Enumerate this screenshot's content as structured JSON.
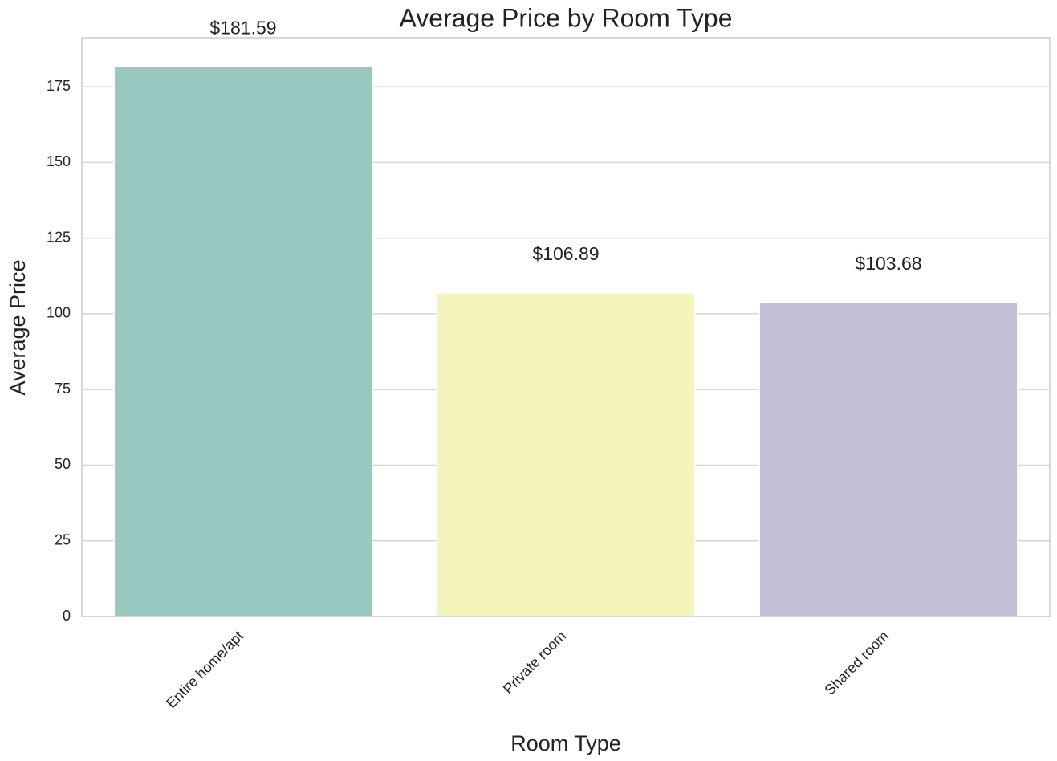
{
  "chart_data": {
    "type": "bar",
    "title": "Average Price by Room Type",
    "xlabel": "Room Type",
    "ylabel": "Average Price",
    "categories": [
      "Entire home/apt",
      "Private room",
      "Shared room"
    ],
    "values": [
      181.59,
      106.89,
      103.68
    ],
    "value_labels": [
      "$181.59",
      "$106.89",
      "$103.68"
    ],
    "colors": [
      "#98c9c1",
      "#f5f5bb",
      "#c2bed6"
    ],
    "ylim": [
      0,
      191.2
    ],
    "yticks": [
      0,
      25,
      50,
      75,
      100,
      125,
      150,
      175
    ],
    "grid": true
  }
}
